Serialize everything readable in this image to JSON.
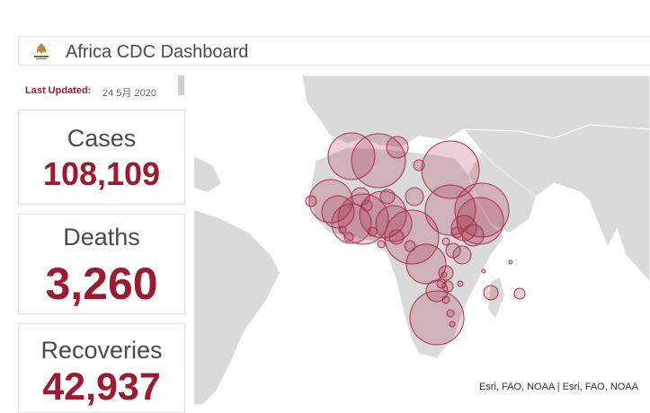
{
  "header": {
    "title": "Africa CDC Dashboard",
    "logo_icon": "africa-cdc-logo"
  },
  "last_updated": {
    "label": "Last Updated:",
    "value": "24 5月 2020"
  },
  "stats": {
    "cases": {
      "label": "Cases",
      "value": "108,109"
    },
    "deaths": {
      "label": "Deaths",
      "value": "3,260"
    },
    "recoveries": {
      "label": "Recoveries",
      "value": "42,937"
    }
  },
  "map": {
    "attribution": "Esri, FAO, NOAA | Esri, FAO, NOAA"
  },
  "colors": {
    "accent": "#9b1c31",
    "bubble_fill": "rgba(170,40,70,0.22)",
    "land": "#dadada"
  }
}
